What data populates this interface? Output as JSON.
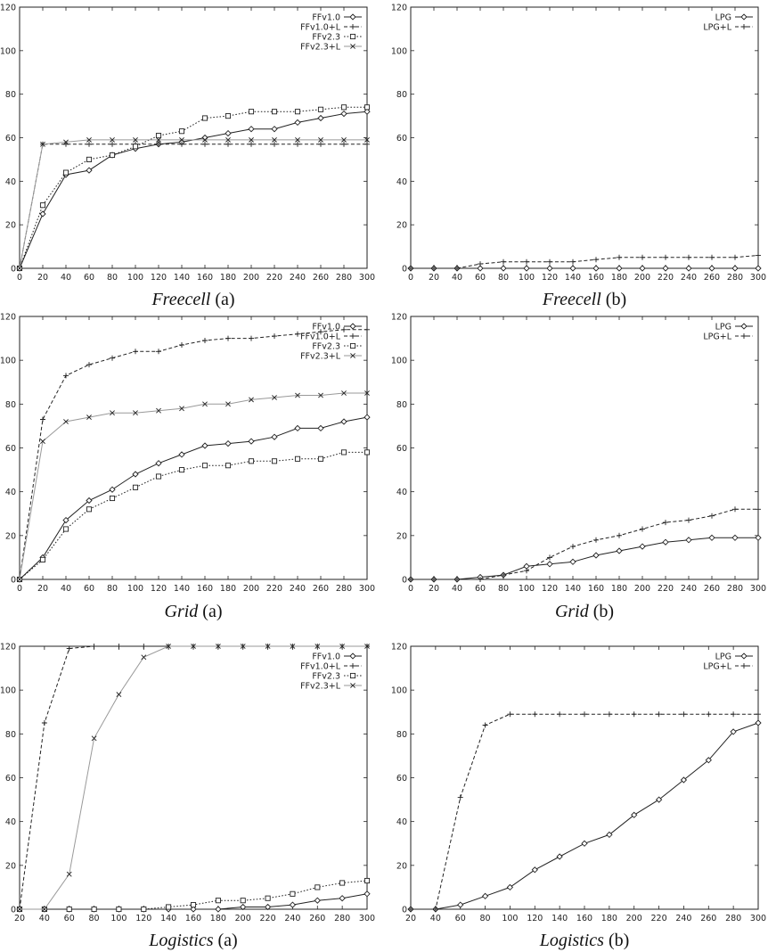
{
  "chart_data": [
    {
      "type": "line",
      "caption": {
        "italic": "Freecell",
        "suffix": " (a)"
      },
      "xlim": [
        0,
        300
      ],
      "ylim": [
        0,
        120
      ],
      "xticks": [
        0,
        20,
        40,
        60,
        80,
        100,
        120,
        140,
        160,
        180,
        200,
        220,
        240,
        260,
        280,
        300
      ],
      "yticks": [
        0,
        20,
        40,
        60,
        80,
        100,
        120
      ],
      "legend_position": "top-right",
      "grid": false,
      "series": [
        {
          "name": "FFv1.0",
          "marker": "diamond",
          "dash": "solid",
          "color": "#222222",
          "x": [
            0,
            20,
            40,
            60,
            80,
            100,
            120,
            140,
            160,
            180,
            200,
            220,
            240,
            260,
            280,
            300
          ],
          "y": [
            0,
            25,
            43,
            45,
            52,
            55,
            57,
            58,
            60,
            62,
            64,
            64,
            67,
            69,
            71,
            72
          ]
        },
        {
          "name": "FFv1.0+L",
          "marker": "plus",
          "dash": "dashed",
          "color": "#222222",
          "x": [
            0,
            20,
            40,
            60,
            80,
            100,
            120,
            140,
            160,
            180,
            200,
            220,
            240,
            260,
            280,
            300
          ],
          "y": [
            0,
            57,
            57,
            57,
            57,
            57,
            57,
            57,
            57,
            57,
            57,
            57,
            57,
            57,
            57,
            57
          ]
        },
        {
          "name": "FFv2.3",
          "marker": "square",
          "dash": "dotted",
          "color": "#222222",
          "x": [
            0,
            20,
            40,
            60,
            80,
            100,
            120,
            140,
            160,
            180,
            200,
            220,
            240,
            260,
            280,
            300
          ],
          "y": [
            0,
            29,
            44,
            50,
            52,
            56,
            61,
            63,
            69,
            70,
            72,
            72,
            72,
            73,
            74,
            74
          ]
        },
        {
          "name": "FFv2.3+L",
          "marker": "cross",
          "dash": "solid",
          "color": "#999999",
          "x": [
            0,
            20,
            40,
            60,
            80,
            100,
            120,
            140,
            160,
            180,
            200,
            220,
            240,
            260,
            280,
            300
          ],
          "y": [
            0,
            57,
            58,
            59,
            59,
            59,
            59,
            59,
            59,
            59,
            59,
            59,
            59,
            59,
            59,
            59
          ]
        }
      ]
    },
    {
      "type": "line",
      "caption": {
        "italic": "Freecell",
        "suffix": " (b)"
      },
      "xlim": [
        0,
        300
      ],
      "ylim": [
        0,
        120
      ],
      "xticks": [
        0,
        20,
        40,
        60,
        80,
        100,
        120,
        140,
        160,
        180,
        200,
        220,
        240,
        260,
        280,
        300
      ],
      "yticks": [
        0,
        20,
        40,
        60,
        80,
        100,
        120
      ],
      "legend_position": "top-right",
      "grid": false,
      "series": [
        {
          "name": "LPG",
          "marker": "diamond",
          "dash": "solid",
          "color": "#222222",
          "x": [
            0,
            20,
            40,
            60,
            80,
            100,
            120,
            140,
            160,
            180,
            200,
            220,
            240,
            260,
            280,
            300
          ],
          "y": [
            0,
            0,
            0,
            0,
            0,
            0,
            0,
            0,
            0,
            0,
            0,
            0,
            0,
            0,
            0,
            0
          ]
        },
        {
          "name": "LPG+L",
          "marker": "plus",
          "dash": "dashed",
          "color": "#222222",
          "x": [
            0,
            20,
            40,
            60,
            80,
            100,
            120,
            140,
            160,
            180,
            200,
            220,
            240,
            260,
            280,
            300
          ],
          "y": [
            0,
            0,
            0,
            2,
            3,
            3,
            3,
            3,
            4,
            5,
            5,
            5,
            5,
            5,
            5,
            6
          ]
        }
      ]
    },
    {
      "type": "line",
      "caption": {
        "italic": "Grid",
        "suffix": " (a)"
      },
      "xlim": [
        0,
        300
      ],
      "ylim": [
        0,
        120
      ],
      "xticks": [
        0,
        20,
        40,
        60,
        80,
        100,
        120,
        140,
        160,
        180,
        200,
        220,
        240,
        260,
        280,
        300
      ],
      "yticks": [
        0,
        20,
        40,
        60,
        80,
        100,
        120
      ],
      "legend_position": "top-right",
      "grid": false,
      "series": [
        {
          "name": "FFv1.0",
          "marker": "diamond",
          "dash": "solid",
          "color": "#222222",
          "x": [
            0,
            20,
            40,
            60,
            80,
            100,
            120,
            140,
            160,
            180,
            200,
            220,
            240,
            260,
            280,
            300
          ],
          "y": [
            0,
            10,
            27,
            36,
            41,
            48,
            53,
            57,
            61,
            62,
            63,
            65,
            69,
            69,
            72,
            74
          ]
        },
        {
          "name": "FFv1.0+L",
          "marker": "plus",
          "dash": "dashed",
          "color": "#222222",
          "x": [
            0,
            20,
            40,
            60,
            80,
            100,
            120,
            140,
            160,
            180,
            200,
            220,
            240,
            260,
            280,
            300
          ],
          "y": [
            0,
            73,
            93,
            98,
            101,
            104,
            104,
            107,
            109,
            110,
            110,
            111,
            112,
            113,
            114,
            114
          ]
        },
        {
          "name": "FFv2.3",
          "marker": "square",
          "dash": "dotted",
          "color": "#222222",
          "x": [
            0,
            20,
            40,
            60,
            80,
            100,
            120,
            140,
            160,
            180,
            200,
            220,
            240,
            260,
            280,
            300
          ],
          "y": [
            0,
            9,
            23,
            32,
            37,
            42,
            47,
            50,
            52,
            52,
            54,
            54,
            55,
            55,
            58,
            58
          ]
        },
        {
          "name": "FFv2.3+L",
          "marker": "cross",
          "dash": "solid",
          "color": "#999999",
          "x": [
            0,
            20,
            40,
            60,
            80,
            100,
            120,
            140,
            160,
            180,
            200,
            220,
            240,
            260,
            280,
            300
          ],
          "y": [
            0,
            63,
            72,
            74,
            76,
            76,
            77,
            78,
            80,
            80,
            82,
            83,
            84,
            84,
            85,
            85
          ]
        }
      ]
    },
    {
      "type": "line",
      "caption": {
        "italic": "Grid",
        "suffix": " (b)"
      },
      "xlim": [
        0,
        300
      ],
      "ylim": [
        0,
        120
      ],
      "xticks": [
        0,
        20,
        40,
        60,
        80,
        100,
        120,
        140,
        160,
        180,
        200,
        220,
        240,
        260,
        280,
        300
      ],
      "yticks": [
        0,
        20,
        40,
        60,
        80,
        100,
        120
      ],
      "legend_position": "top-right",
      "grid": false,
      "series": [
        {
          "name": "LPG",
          "marker": "diamond",
          "dash": "solid",
          "color": "#222222",
          "x": [
            0,
            20,
            40,
            60,
            80,
            100,
            120,
            140,
            160,
            180,
            200,
            220,
            240,
            260,
            280,
            300
          ],
          "y": [
            0,
            0,
            0,
            1,
            2,
            6,
            7,
            8,
            11,
            13,
            15,
            17,
            18,
            19,
            19,
            19
          ]
        },
        {
          "name": "LPG+L",
          "marker": "plus",
          "dash": "dashed",
          "color": "#222222",
          "x": [
            0,
            20,
            40,
            60,
            80,
            100,
            120,
            140,
            160,
            180,
            200,
            220,
            240,
            260,
            280,
            300
          ],
          "y": [
            0,
            0,
            0,
            0,
            2,
            4,
            10,
            15,
            18,
            20,
            23,
            26,
            27,
            29,
            32,
            32
          ]
        }
      ]
    },
    {
      "type": "line",
      "caption": {
        "italic": "Logistics",
        "suffix": " (a)"
      },
      "xlim": [
        20,
        300
      ],
      "ylim": [
        0,
        120
      ],
      "xticks": [
        20,
        40,
        60,
        80,
        100,
        120,
        140,
        160,
        180,
        200,
        220,
        240,
        260,
        280,
        300
      ],
      "yticks": [
        0,
        20,
        40,
        60,
        80,
        100,
        120
      ],
      "legend_position": "top-right",
      "grid": false,
      "series": [
        {
          "name": "FFv1.0",
          "marker": "diamond",
          "dash": "solid",
          "color": "#222222",
          "x": [
            20,
            40,
            60,
            80,
            100,
            120,
            140,
            160,
            180,
            200,
            220,
            240,
            260,
            280,
            300
          ],
          "y": [
            0,
            0,
            0,
            0,
            0,
            0,
            0,
            0,
            0,
            1,
            1,
            2,
            4,
            5,
            7
          ]
        },
        {
          "name": "FFv1.0+L",
          "marker": "plus",
          "dash": "dashed",
          "color": "#222222",
          "x": [
            20,
            40,
            60,
            80,
            100,
            120,
            140,
            160,
            180,
            200,
            220,
            240,
            260,
            280,
            300
          ],
          "y": [
            0,
            85,
            119,
            120,
            120,
            120,
            120,
            120,
            120,
            120,
            120,
            120,
            120,
            120,
            120
          ]
        },
        {
          "name": "FFv2.3",
          "marker": "square",
          "dash": "dotted",
          "color": "#222222",
          "x": [
            20,
            40,
            60,
            80,
            100,
            120,
            140,
            160,
            180,
            200,
            220,
            240,
            260,
            280,
            300
          ],
          "y": [
            0,
            0,
            0,
            0,
            0,
            0,
            1,
            2,
            4,
            4,
            5,
            7,
            10,
            12,
            13
          ]
        },
        {
          "name": "FFv2.3+L",
          "marker": "cross",
          "dash": "solid",
          "color": "#999999",
          "x": [
            20,
            40,
            60,
            80,
            100,
            120,
            140,
            160,
            180,
            200,
            220,
            240,
            260,
            280,
            300
          ],
          "y": [
            0,
            0,
            16,
            78,
            98,
            115,
            120,
            120,
            120,
            120,
            120,
            120,
            120,
            120,
            120
          ]
        }
      ]
    },
    {
      "type": "line",
      "caption": {
        "italic": "Logistics",
        "suffix": " (b)"
      },
      "xlim": [
        20,
        300
      ],
      "ylim": [
        0,
        120
      ],
      "xticks": [
        20,
        40,
        60,
        80,
        100,
        120,
        140,
        160,
        180,
        200,
        220,
        240,
        260,
        280,
        300
      ],
      "yticks": [
        0,
        20,
        40,
        60,
        80,
        100,
        120
      ],
      "legend_position": "top-right",
      "grid": false,
      "series": [
        {
          "name": "LPG",
          "marker": "diamond",
          "dash": "solid",
          "color": "#222222",
          "x": [
            20,
            40,
            60,
            80,
            100,
            120,
            140,
            160,
            180,
            200,
            220,
            240,
            260,
            280,
            300
          ],
          "y": [
            0,
            0,
            2,
            6,
            10,
            18,
            24,
            30,
            34,
            43,
            50,
            59,
            68,
            81,
            85
          ]
        },
        {
          "name": "LPG+L",
          "marker": "plus",
          "dash": "dashed",
          "color": "#222222",
          "x": [
            20,
            40,
            60,
            80,
            100,
            120,
            140,
            160,
            180,
            200,
            220,
            240,
            260,
            280,
            300
          ],
          "y": [
            0,
            0,
            51,
            84,
            89,
            89,
            89,
            89,
            89,
            89,
            89,
            89,
            89,
            89,
            89
          ]
        }
      ]
    }
  ]
}
